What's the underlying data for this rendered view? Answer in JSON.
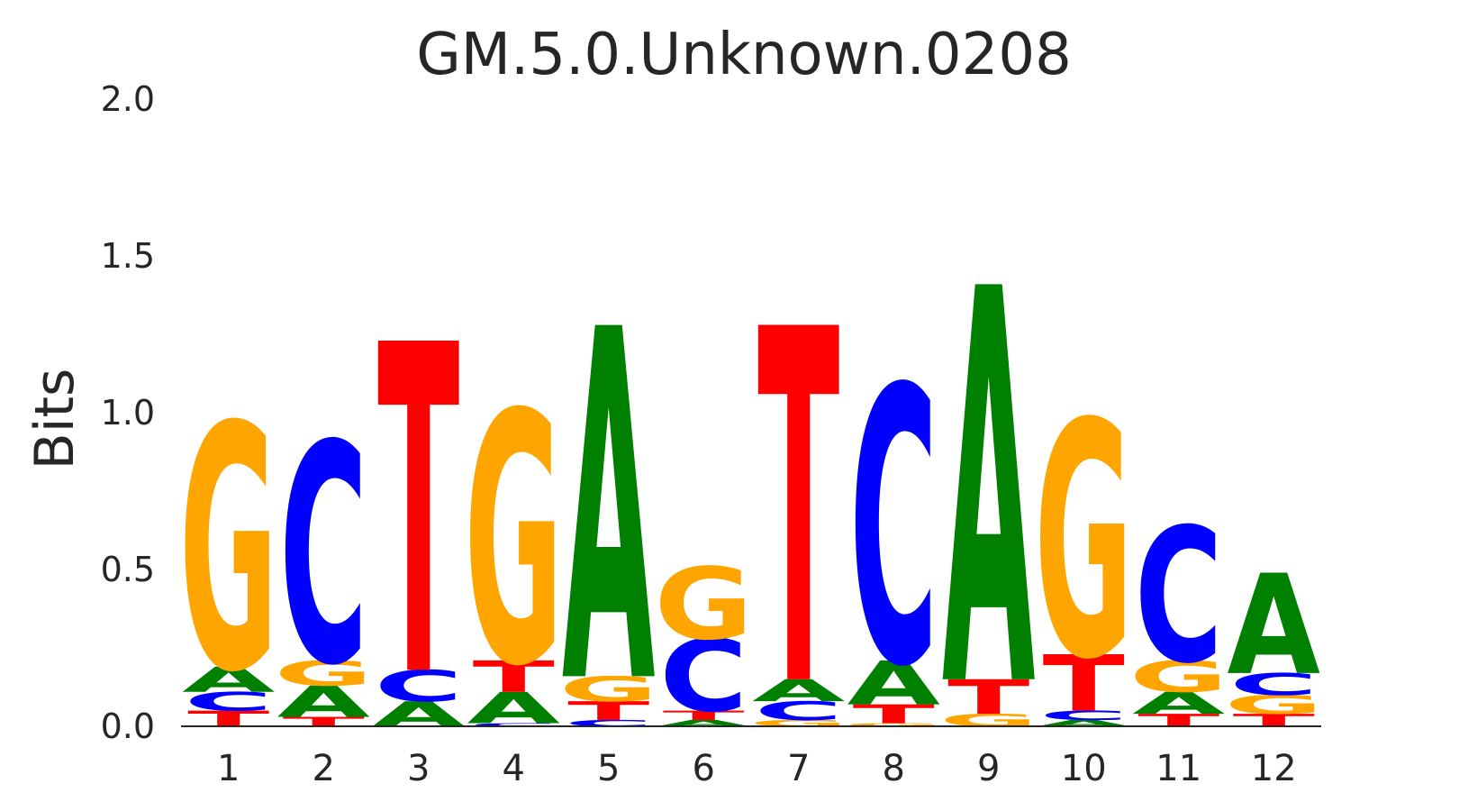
{
  "chart_data": {
    "type": "sequence-logo",
    "title": "GM.5.0.Unknown.0208",
    "ylabel": "Bits",
    "xlabel": "",
    "ylim": [
      0,
      2.0
    ],
    "yticks": [
      "0.0",
      "0.5",
      "1.0",
      "1.5",
      "2.0"
    ],
    "ytick_values": [
      0,
      0.5,
      1.0,
      1.5,
      2.0
    ],
    "grid": false,
    "colors": {
      "A": "#008000",
      "C": "#0000ff",
      "G": "#ffa500",
      "T": "#ff0000"
    },
    "positions": [
      {
        "label": "1",
        "stack": [
          {
            "base": "T",
            "bits": 0.05
          },
          {
            "base": "C",
            "bits": 0.06
          },
          {
            "base": "A",
            "bits": 0.08
          },
          {
            "base": "G",
            "bits": 0.78
          }
        ]
      },
      {
        "label": "2",
        "stack": [
          {
            "base": "T",
            "bits": 0.03
          },
          {
            "base": "A",
            "bits": 0.1
          },
          {
            "base": "G",
            "bits": 0.08
          },
          {
            "base": "C",
            "bits": 0.7
          }
        ]
      },
      {
        "label": "3",
        "stack": [
          {
            "base": "A",
            "bits": 0.08
          },
          {
            "base": "C",
            "bits": 0.1
          },
          {
            "base": "T",
            "bits": 1.05
          }
        ]
      },
      {
        "label": "4",
        "stack": [
          {
            "base": "C",
            "bits": 0.01
          },
          {
            "base": "A",
            "bits": 0.1
          },
          {
            "base": "T",
            "bits": 0.1
          },
          {
            "base": "G",
            "bits": 0.8
          }
        ]
      },
      {
        "label": "5",
        "stack": [
          {
            "base": "C",
            "bits": 0.02
          },
          {
            "base": "T",
            "bits": 0.06
          },
          {
            "base": "G",
            "bits": 0.08
          },
          {
            "base": "A",
            "bits": 1.12
          }
        ]
      },
      {
        "label": "6",
        "stack": [
          {
            "base": "A",
            "bits": 0.02
          },
          {
            "base": "T",
            "bits": 0.03
          },
          {
            "base": "C",
            "bits": 0.23
          },
          {
            "base": "G",
            "bits": 0.23
          }
        ]
      },
      {
        "label": "7",
        "stack": [
          {
            "base": "G",
            "bits": 0.02
          },
          {
            "base": "C",
            "bits": 0.06
          },
          {
            "base": "A",
            "bits": 0.07
          },
          {
            "base": "T",
            "bits": 1.13
          }
        ]
      },
      {
        "label": "8",
        "stack": [
          {
            "base": "G",
            "bits": 0.01
          },
          {
            "base": "T",
            "bits": 0.06
          },
          {
            "base": "A",
            "bits": 0.14
          },
          {
            "base": "C",
            "bits": 0.88
          }
        ]
      },
      {
        "label": "9",
        "stack": [
          {
            "base": "G",
            "bits": 0.04
          },
          {
            "base": "T",
            "bits": 0.11
          },
          {
            "base": "A",
            "bits": 1.26
          }
        ]
      },
      {
        "label": "10",
        "stack": [
          {
            "base": "A",
            "bits": 0.02
          },
          {
            "base": "C",
            "bits": 0.03
          },
          {
            "base": "T",
            "bits": 0.18
          },
          {
            "base": "G",
            "bits": 0.75
          }
        ]
      },
      {
        "label": "11",
        "stack": [
          {
            "base": "T",
            "bits": 0.04
          },
          {
            "base": "A",
            "bits": 0.07
          },
          {
            "base": "G",
            "bits": 0.1
          },
          {
            "base": "C",
            "bits": 0.43
          }
        ]
      },
      {
        "label": "12",
        "stack": [
          {
            "base": "T",
            "bits": 0.04
          },
          {
            "base": "G",
            "bits": 0.06
          },
          {
            "base": "C",
            "bits": 0.07
          },
          {
            "base": "A",
            "bits": 0.32
          }
        ]
      }
    ]
  }
}
